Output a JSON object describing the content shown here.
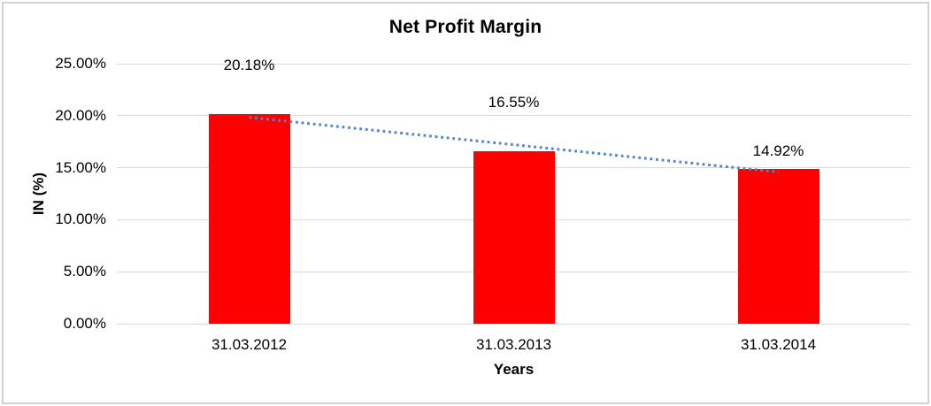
{
  "chart_data": {
    "type": "bar",
    "title": "Net Profit Margin",
    "xlabel": "Years",
    "ylabel": "IN (%)",
    "categories": [
      "31.03.2012",
      "31.03.2013",
      "31.03.2014"
    ],
    "values": [
      20.18,
      16.55,
      14.92
    ],
    "data_labels": [
      "20.18%",
      "16.55%",
      "14.92%"
    ],
    "ylim": [
      0,
      25
    ],
    "yticks": [
      {
        "value": 0,
        "label": "0.00%"
      },
      {
        "value": 5,
        "label": "5.00%"
      },
      {
        "value": 10,
        "label": "10.00%"
      },
      {
        "value": 15,
        "label": "15.00%"
      },
      {
        "value": 20,
        "label": "20.00%"
      },
      {
        "value": 25,
        "label": "25.00%"
      }
    ],
    "grid": true,
    "legend": false,
    "bar_color": "#ff0000",
    "gridline_color": "#d9d9d9",
    "border_color": "#d2d2d2",
    "trendline": {
      "type": "linear",
      "style": "dotted",
      "color": "#4e86c8",
      "start_value": 19.84,
      "end_value": 14.58
    }
  }
}
